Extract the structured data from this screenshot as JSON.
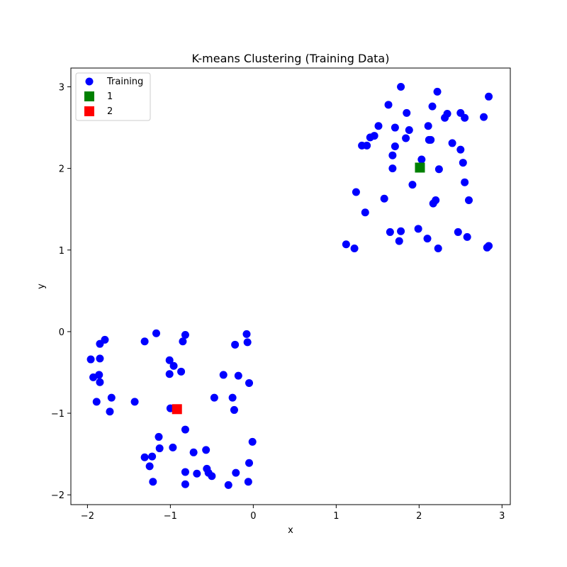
{
  "chart_data": {
    "type": "scatter",
    "title": "K-means Clustering (Training Data)",
    "xlabel": "x",
    "ylabel": "y",
    "xlim": [
      -2.2,
      3.1
    ],
    "ylim": [
      -2.12,
      3.23
    ],
    "xticks": [
      -2,
      -1,
      0,
      1,
      2,
      3
    ],
    "xtick_labels": [
      "−2",
      "−1",
      "0",
      "1",
      "2",
      "3"
    ],
    "yticks": [
      -2,
      -1,
      0,
      1,
      2,
      3
    ],
    "ytick_labels": [
      "−2",
      "−1",
      "0",
      "1",
      "2",
      "3"
    ],
    "grid": false,
    "legend_position": "top-left",
    "series": [
      {
        "name": "Training",
        "marker": "circle",
        "color": "#0000ff",
        "points": [
          [
            1.78,
            3.0
          ],
          [
            2.22,
            2.94
          ],
          [
            2.84,
            2.88
          ],
          [
            1.63,
            2.78
          ],
          [
            2.16,
            2.76
          ],
          [
            1.85,
            2.68
          ],
          [
            2.34,
            2.67
          ],
          [
            2.5,
            2.68
          ],
          [
            2.31,
            2.62
          ],
          [
            2.55,
            2.62
          ],
          [
            2.78,
            2.63
          ],
          [
            1.51,
            2.52
          ],
          [
            1.71,
            2.5
          ],
          [
            2.11,
            2.52
          ],
          [
            1.88,
            2.47
          ],
          [
            1.46,
            2.4
          ],
          [
            1.41,
            2.38
          ],
          [
            1.84,
            2.37
          ],
          [
            2.12,
            2.35
          ],
          [
            2.14,
            2.35
          ],
          [
            2.4,
            2.31
          ],
          [
            1.31,
            2.28
          ],
          [
            1.37,
            2.28
          ],
          [
            1.71,
            2.27
          ],
          [
            2.5,
            2.23
          ],
          [
            1.68,
            2.16
          ],
          [
            2.03,
            2.11
          ],
          [
            2.53,
            2.07
          ],
          [
            1.68,
            2.0
          ],
          [
            2.24,
            1.99
          ],
          [
            1.92,
            1.8
          ],
          [
            2.55,
            1.83
          ],
          [
            1.24,
            1.71
          ],
          [
            1.58,
            1.63
          ],
          [
            2.2,
            1.61
          ],
          [
            2.6,
            1.61
          ],
          [
            2.17,
            1.57
          ],
          [
            1.35,
            1.46
          ],
          [
            1.99,
            1.26
          ],
          [
            1.78,
            1.23
          ],
          [
            1.65,
            1.22
          ],
          [
            2.47,
            1.22
          ],
          [
            2.58,
            1.16
          ],
          [
            2.1,
            1.14
          ],
          [
            1.76,
            1.11
          ],
          [
            1.12,
            1.07
          ],
          [
            1.22,
            1.02
          ],
          [
            2.23,
            1.02
          ],
          [
            2.84,
            1.05
          ],
          [
            2.82,
            1.03
          ],
          [
            -1.17,
            -0.02
          ],
          [
            -0.82,
            -0.04
          ],
          [
            -0.08,
            -0.03
          ],
          [
            -1.79,
            -0.1
          ],
          [
            -1.31,
            -0.12
          ],
          [
            -0.85,
            -0.12
          ],
          [
            -0.07,
            -0.13
          ],
          [
            -1.85,
            -0.15
          ],
          [
            -0.22,
            -0.16
          ],
          [
            -1.96,
            -0.34
          ],
          [
            -1.85,
            -0.33
          ],
          [
            -1.01,
            -0.35
          ],
          [
            -0.96,
            -0.42
          ],
          [
            -0.87,
            -0.49
          ],
          [
            -1.01,
            -0.52
          ],
          [
            -0.36,
            -0.53
          ],
          [
            -0.18,
            -0.54
          ],
          [
            -1.86,
            -0.53
          ],
          [
            -1.93,
            -0.56
          ],
          [
            -1.85,
            -0.62
          ],
          [
            -0.05,
            -0.63
          ],
          [
            -1.71,
            -0.81
          ],
          [
            -0.47,
            -0.81
          ],
          [
            -0.25,
            -0.81
          ],
          [
            -1.89,
            -0.86
          ],
          [
            -1.43,
            -0.86
          ],
          [
            -1.0,
            -0.94
          ],
          [
            -0.23,
            -0.96
          ],
          [
            -1.73,
            -0.98
          ],
          [
            -0.82,
            -1.2
          ],
          [
            -1.14,
            -1.29
          ],
          [
            -0.01,
            -1.35
          ],
          [
            -1.13,
            -1.43
          ],
          [
            -0.97,
            -1.42
          ],
          [
            -0.57,
            -1.45
          ],
          [
            -0.72,
            -1.48
          ],
          [
            -1.31,
            -1.54
          ],
          [
            -1.22,
            -1.53
          ],
          [
            -0.05,
            -1.61
          ],
          [
            -1.25,
            -1.65
          ],
          [
            -0.56,
            -1.68
          ],
          [
            -0.82,
            -1.72
          ],
          [
            -0.54,
            -1.73
          ],
          [
            -0.68,
            -1.74
          ],
          [
            -0.21,
            -1.73
          ],
          [
            -0.5,
            -1.77
          ],
          [
            -1.21,
            -1.84
          ],
          [
            -0.06,
            -1.84
          ],
          [
            -0.82,
            -1.87
          ],
          [
            -0.3,
            -1.88
          ]
        ]
      },
      {
        "name": "1",
        "marker": "square",
        "color": "#008000",
        "points": [
          [
            2.01,
            2.01
          ]
        ]
      },
      {
        "name": "2",
        "marker": "square",
        "color": "#ff0000",
        "points": [
          [
            -0.92,
            -0.95
          ]
        ]
      }
    ]
  }
}
